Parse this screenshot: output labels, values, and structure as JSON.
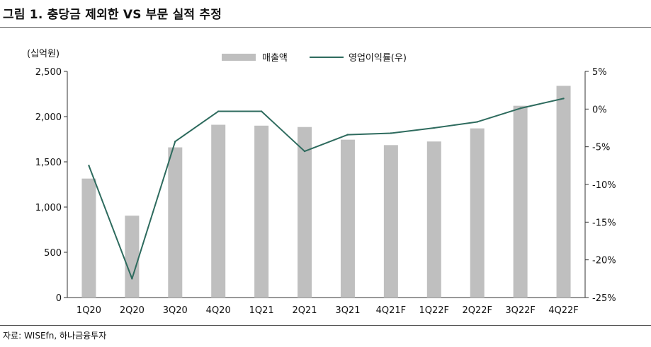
{
  "title": "그림 1. 충당금 제외한 VS 부문 실적 추정",
  "source": "자료: WISEfn, 하나금융투자",
  "chart_data": {
    "type": "bar+line",
    "categories": [
      "1Q20",
      "2Q20",
      "3Q20",
      "4Q20",
      "1Q21",
      "2Q21",
      "3Q21",
      "4Q21F",
      "1Q22F",
      "2Q22F",
      "3Q22F",
      "4Q22F"
    ],
    "series": [
      {
        "name": "매출액",
        "type": "bar",
        "axis": "left",
        "color": "#bfbfbf",
        "values": [
          1315,
          905,
          1660,
          1910,
          1900,
          1885,
          1745,
          1685,
          1725,
          1870,
          2120,
          2340
        ]
      },
      {
        "name": "영업이익률(우)",
        "type": "line",
        "axis": "right",
        "color": "#2e6b5e",
        "values": [
          -7.5,
          -22.5,
          -4.3,
          -0.3,
          -0.3,
          -5.6,
          -3.4,
          -3.2,
          -2.5,
          -1.7,
          0.1,
          1.4
        ]
      }
    ],
    "left_axis": {
      "unit_label": "(십억원)",
      "min": 0,
      "max": 2500,
      "ticks": [
        0,
        500,
        1000,
        1500,
        2000,
        2500
      ],
      "tick_labels": [
        "0",
        "500",
        "1,000",
        "1,500",
        "2,000",
        "2,500"
      ]
    },
    "right_axis": {
      "min": -25,
      "max": 5,
      "ticks": [
        -25,
        -20,
        -15,
        -10,
        -5,
        0,
        5
      ],
      "tick_labels": [
        "-25%",
        "-20%",
        "-15%",
        "-10%",
        "-5%",
        "0%",
        "5%"
      ]
    },
    "legend": {
      "placement": "top-center",
      "items": [
        "매출액",
        "영업이익률(우)"
      ]
    }
  }
}
